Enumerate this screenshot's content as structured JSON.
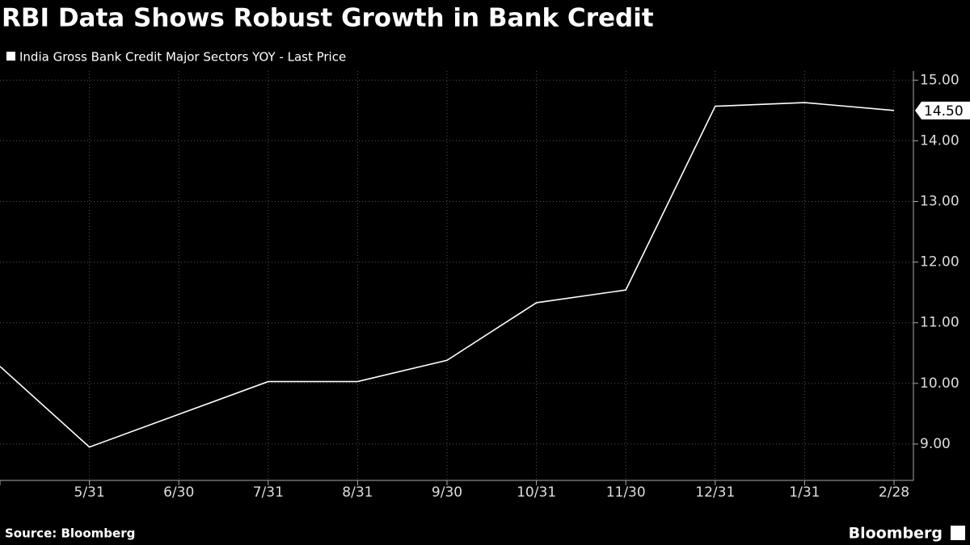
{
  "chart_data": {
    "type": "line",
    "title": "RBI Data Shows Robust Growth in Bank Credit",
    "source": "Source: Bloomberg",
    "brand": "Bloomberg",
    "categories": [
      null,
      "5/31",
      "6/30",
      "7/31",
      "8/31",
      "9/30",
      "10/31",
      "11/30",
      "12/31",
      "1/31",
      "2/28"
    ],
    "series": [
      {
        "name": "India Gross Bank Credit Major Sectors YOY - Last Price",
        "color": "#ffffff",
        "values": [
          10.28,
          8.95,
          9.49,
          10.03,
          10.03,
          10.38,
          11.33,
          11.54,
          14.57,
          14.63,
          14.5
        ]
      }
    ],
    "last_price_label": "14.50",
    "ylim": [
      8.4,
      15.15
    ],
    "yticks": [
      {
        "value": 9,
        "label": "9.00"
      },
      {
        "value": 10,
        "label": "10.00"
      },
      {
        "value": 11,
        "label": "11.00"
      },
      {
        "value": 12,
        "label": "12.00"
      },
      {
        "value": 13,
        "label": "13.00"
      },
      {
        "value": 14,
        "label": "14.00"
      },
      {
        "value": 15,
        "label": "15.00"
      }
    ],
    "grid": true
  }
}
